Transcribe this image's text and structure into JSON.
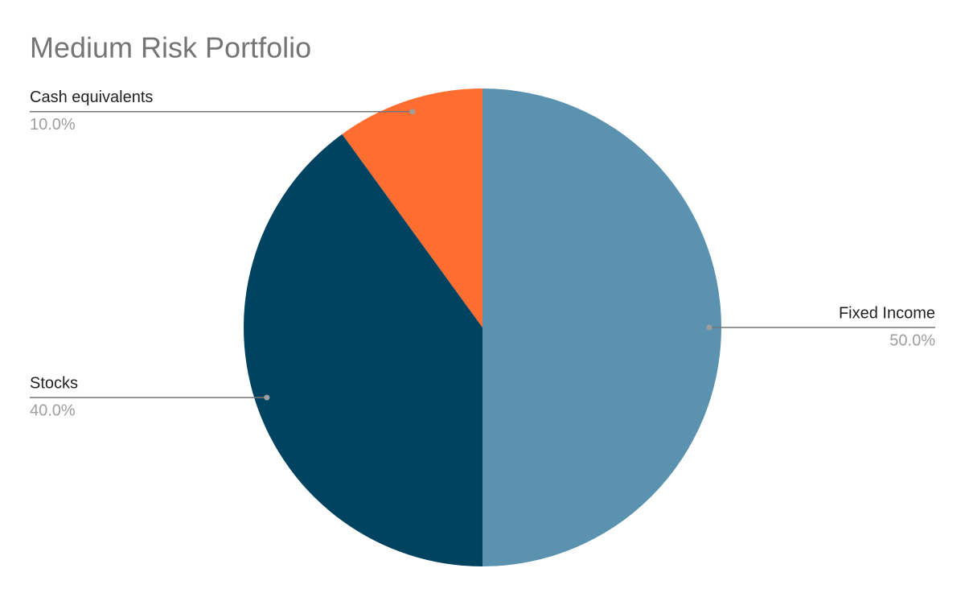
{
  "chart_data": {
    "type": "pie",
    "title": "Medium Risk Portfolio",
    "categories": [
      "Fixed Income",
      "Stocks",
      "Cash equivalents"
    ],
    "values": [
      50,
      40,
      10
    ],
    "value_labels": [
      "50.0%",
      "40.0%",
      "10.0%"
    ],
    "colors": [
      "#5a92b0",
      "#004360",
      "#ff6d31"
    ]
  }
}
